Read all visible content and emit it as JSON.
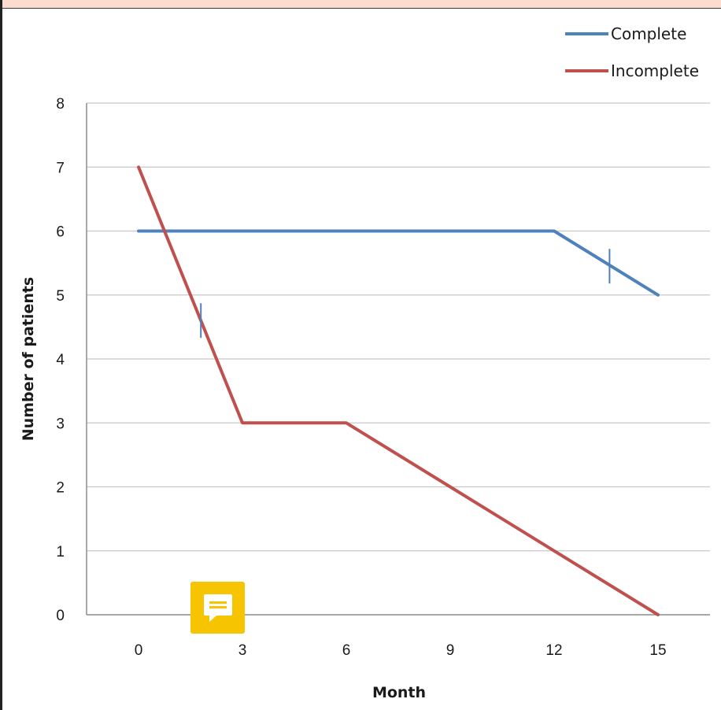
{
  "chart_data": {
    "type": "line",
    "title": "",
    "xlabel": "Month",
    "ylabel": "Number of patients",
    "x_ticks": [
      0,
      3,
      6,
      9,
      12,
      15
    ],
    "y_ticks": [
      0,
      1,
      2,
      3,
      4,
      5,
      6,
      7,
      8
    ],
    "xlim": [
      -1.5,
      16.5
    ],
    "ylim": [
      0,
      8
    ],
    "grid": "horizontal",
    "legend_position": "top-right",
    "series": [
      {
        "name": "Complete",
        "color": "#4f81bd",
        "x": [
          0,
          12,
          15
        ],
        "y": [
          6,
          6,
          5
        ],
        "censor_marks": [
          {
            "x": 13.6,
            "y": 5.45
          }
        ]
      },
      {
        "name": "Incomplete",
        "color": "#c0504d",
        "x": [
          0,
          3,
          6,
          12,
          15
        ],
        "y": [
          7,
          3,
          3,
          1,
          0
        ],
        "censor_marks": [
          {
            "x": 1.8,
            "y": 4.6
          }
        ]
      }
    ]
  },
  "overlay": {
    "comment_icon": "comment-icon",
    "comment_color": "#f6c400"
  }
}
